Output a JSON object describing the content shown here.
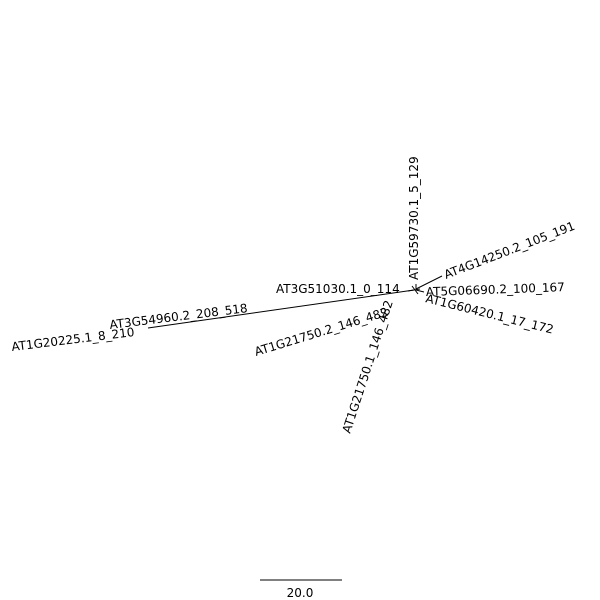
{
  "tree": {
    "leaves": [
      {
        "id": "AT1G59730",
        "label": "AT1G59730.1_5_129"
      },
      {
        "id": "AT4G14250",
        "label": "AT4G14250.2_105_191"
      },
      {
        "id": "AT5G06690",
        "label": "AT5G06690.2_100_167"
      },
      {
        "id": "AT1G60420",
        "label": "AT1G60420.1_17_172"
      },
      {
        "id": "AT1G21750_1",
        "label": "AT1G21750.1_146_482"
      },
      {
        "id": "AT1G21750_2",
        "label": "AT1G21750.2_146_482"
      },
      {
        "id": "AT3G51030",
        "label": "AT3G51030.1_0_114"
      },
      {
        "id": "AT3G54960",
        "label": "AT3G54960.2_208_518"
      },
      {
        "id": "AT1G20225",
        "label": "AT1G20225.1_8_210"
      }
    ]
  },
  "scale_bar": {
    "label": "20.0"
  }
}
